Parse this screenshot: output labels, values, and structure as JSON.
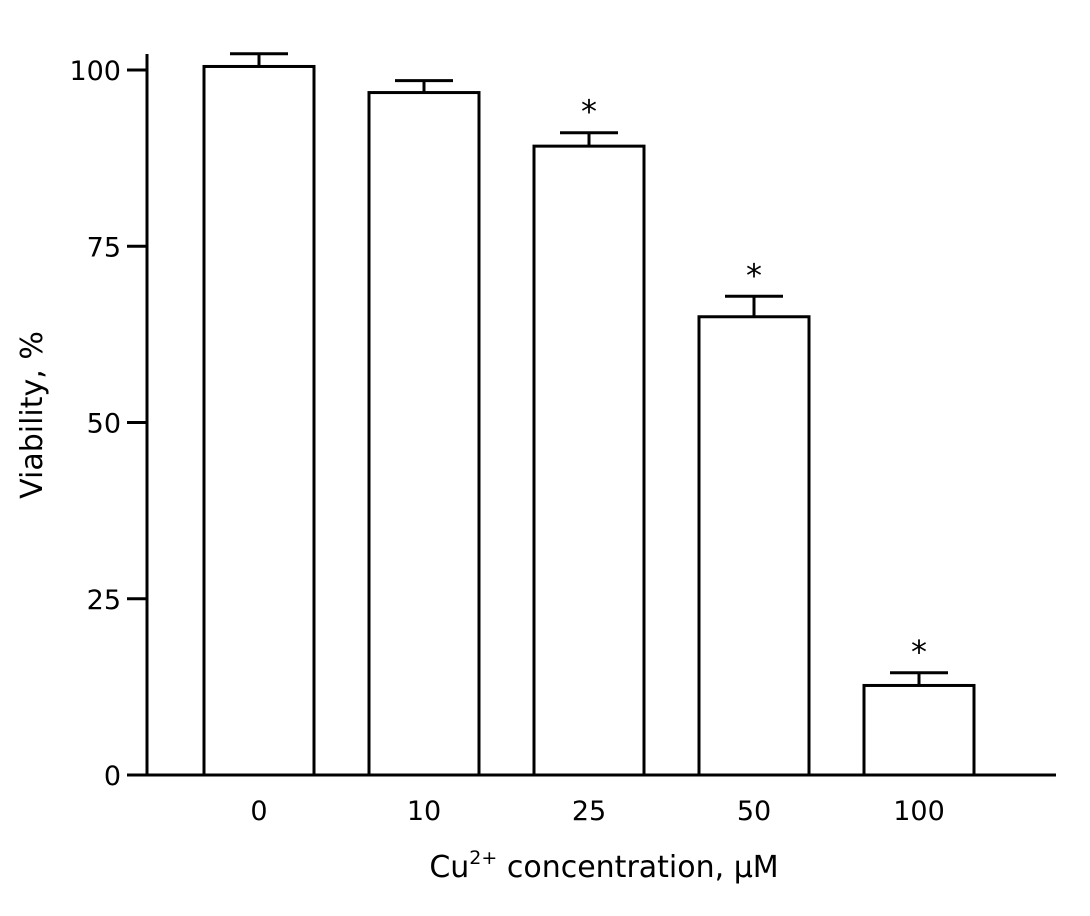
{
  "chart_data": {
    "type": "bar",
    "categories": [
      "0",
      "10",
      "25",
      "50",
      "100"
    ],
    "values": [
      100.5,
      96.8,
      89.2,
      65.0,
      12.7
    ],
    "error_upper": [
      102.3,
      98.5,
      91.1,
      67.9,
      14.5
    ],
    "significant": [
      false,
      false,
      true,
      true,
      true
    ],
    "significance_marker": "*",
    "xlabel": "Cu",
    "xlabel_superscript": "2+",
    "xlabel_suffix": " concentration, µM",
    "ylabel": "Viability, %",
    "yticks": [
      "0",
      "25",
      "50",
      "75",
      "100"
    ],
    "ylim": [
      0,
      100
    ],
    "grid": false,
    "bar_fill": "#ffffff",
    "bar_stroke": "#000000"
  }
}
